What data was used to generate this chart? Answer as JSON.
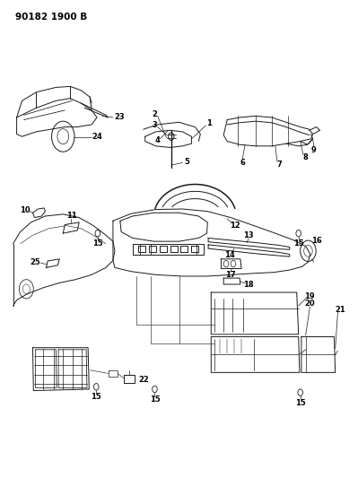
{
  "title_text": "90182 1900 B",
  "bg_color": "#ffffff",
  "line_color": "#1a1a1a",
  "label_color": "#000000",
  "fig_width": 3.99,
  "fig_height": 5.33,
  "dpi": 100
}
